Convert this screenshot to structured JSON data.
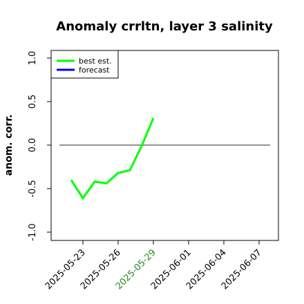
{
  "chart_data": {
    "type": "line",
    "title": "Anomaly crrltn, layer 3 salinity",
    "xlabel": "",
    "ylabel": "anom. corr.",
    "ylim": [
      -1.0,
      1.0
    ],
    "y_ticks": [
      "-1.0",
      "-0.5",
      "0.0",
      "0.5",
      "1.0"
    ],
    "x_ticks": [
      "2025-05-23",
      "2025-05-26",
      "2025-05-29",
      "2025-06-01",
      "2025-06-04",
      "2025-06-07"
    ],
    "x_tick_colors": [
      "#000000",
      "#000000",
      "#228b22",
      "#000000",
      "#000000",
      "#000000"
    ],
    "reference_line": {
      "y": 0.0,
      "color": "#555555"
    },
    "legend": {
      "placement": "top-left",
      "entries": [
        {
          "label": "best est.",
          "color": "#00ff00"
        },
        {
          "label": "forecast",
          "color": "#0000ff"
        }
      ]
    },
    "series": [
      {
        "name": "best est.",
        "color": "#00ff00",
        "x": [
          "2025-05-22",
          "2025-05-23",
          "2025-05-24",
          "2025-05-25",
          "2025-05-26",
          "2025-05-27",
          "2025-05-28",
          "2025-05-29"
        ],
        "values": [
          -0.4,
          -0.61,
          -0.42,
          -0.44,
          -0.32,
          -0.29,
          -0.01,
          0.31
        ]
      },
      {
        "name": "forecast",
        "color": "#0000ff",
        "x": [],
        "values": []
      }
    ]
  }
}
